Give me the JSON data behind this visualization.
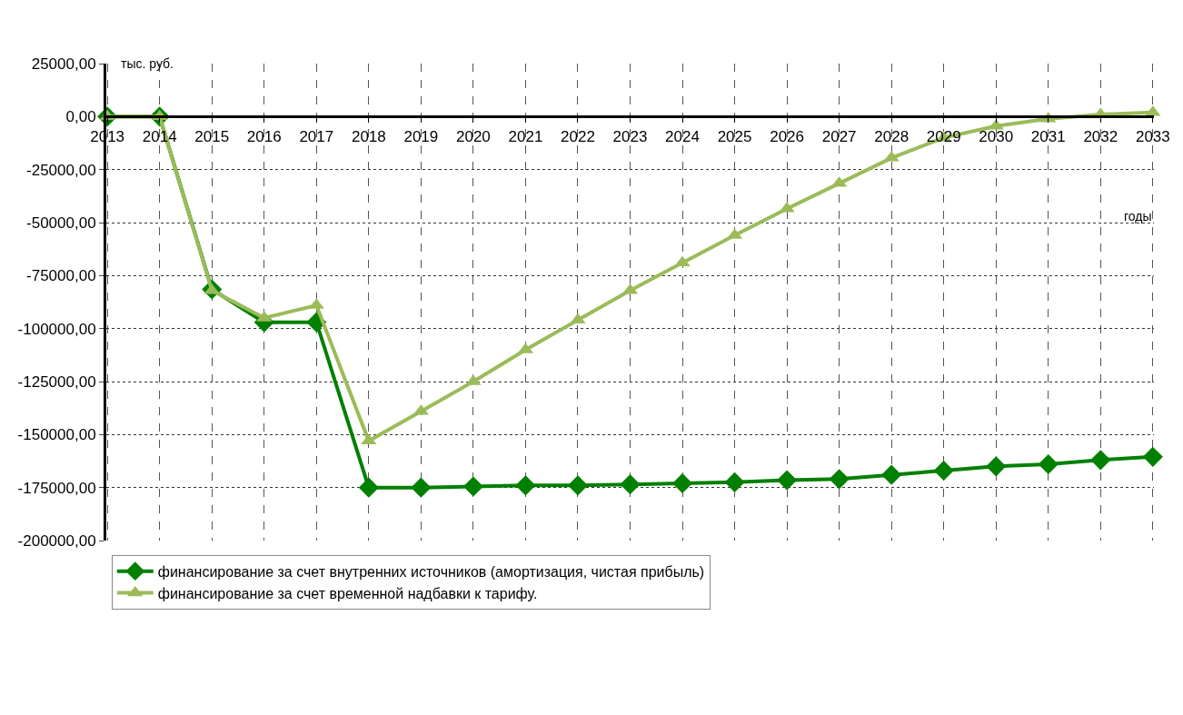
{
  "chart_data": {
    "type": "line",
    "xlabel": "годы",
    "ylabel": "тыс. руб.",
    "categories": [
      "2013",
      "2014",
      "2015",
      "2016",
      "2017",
      "2018",
      "2019",
      "2020",
      "2021",
      "2022",
      "2023",
      "2024",
      "2025",
      "2026",
      "2027",
      "2028",
      "2029",
      "2030",
      "2031",
      "2032",
      "2033"
    ],
    "series": [
      {
        "name": "финансирование за счет внутренних источников (амортизация, чистая прибыль)",
        "color": "#008000",
        "marker": "diamond",
        "values": [
          0,
          0,
          -81500,
          -97000,
          -97000,
          -175000,
          -175000,
          -174500,
          -174000,
          -174000,
          -173500,
          -173000,
          -172500,
          -171500,
          -171000,
          -169000,
          -167000,
          -165000,
          -164000,
          -162000,
          -160500
        ]
      },
      {
        "name": "финансирование за счет временной надбавки к тарифу.",
        "color": "#9bbb59",
        "marker": "triangle",
        "values": [
          0,
          0,
          -82000,
          -95000,
          -89000,
          -153000,
          -139000,
          -125000,
          -110000,
          -96000,
          -82000,
          -69000,
          -56000,
          -43500,
          -31500,
          -19500,
          -10000,
          -4500,
          -1000,
          1000,
          2000
        ]
      }
    ],
    "ylim": [
      -200000,
      25000
    ],
    "yticks": [
      {
        "value": 25000,
        "label": "25000,00"
      },
      {
        "value": 0,
        "label": "0,00"
      },
      {
        "value": -25000,
        "label": "-25000,00"
      },
      {
        "value": -50000,
        "label": "-50000,00"
      },
      {
        "value": -75000,
        "label": "-75000,00"
      },
      {
        "value": -100000,
        "label": "-100000,00"
      },
      {
        "value": -125000,
        "label": "-125000,00"
      },
      {
        "value": -150000,
        "label": "-150000,00"
      },
      {
        "value": -175000,
        "label": "-175000,00"
      },
      {
        "value": -200000,
        "label": "-200000,00"
      }
    ],
    "grid": true,
    "legend": "bottom",
    "line_style": "solid"
  }
}
